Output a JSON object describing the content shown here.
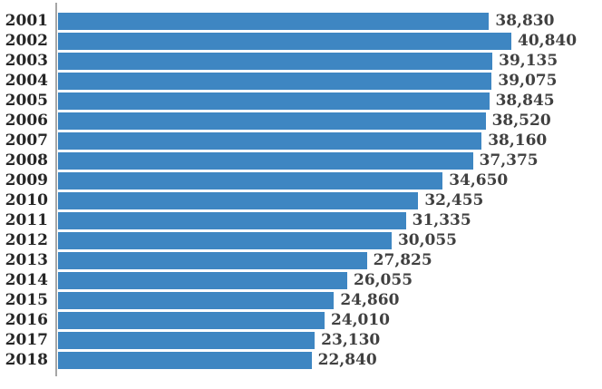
{
  "chart": {
    "bar_color": "#3E86C2",
    "axis_color": "#A6A6A6",
    "category_label_color": "#262626",
    "value_label_color": "#404040",
    "background_color": "#FFFFFF"
  },
  "chart_data": {
    "type": "bar",
    "orientation": "horizontal",
    "title": "",
    "xlabel": "",
    "ylabel": "",
    "grid": false,
    "legend": false,
    "xlim": [
      0,
      40840
    ],
    "categories": [
      "2001",
      "2002",
      "2003",
      "2004",
      "2005",
      "2006",
      "2007",
      "2008",
      "2009",
      "2010",
      "2011",
      "2012",
      "2013",
      "2014",
      "2015",
      "2016",
      "2017",
      "2018"
    ],
    "values": [
      38830,
      40840,
      39135,
      39075,
      38845,
      38520,
      38160,
      37375,
      34650,
      32455,
      31335,
      30055,
      27825,
      26055,
      24860,
      24010,
      23130,
      22840
    ],
    "value_labels": [
      "38,830",
      "40,840",
      "39,135",
      "39,075",
      "38,845",
      "38,520",
      "38,160",
      "37,375",
      "34,650",
      "32,455",
      "31,335",
      "30,055",
      "27,825",
      "26,055",
      "24,860",
      "24,010",
      "23,130",
      "22,840"
    ]
  }
}
